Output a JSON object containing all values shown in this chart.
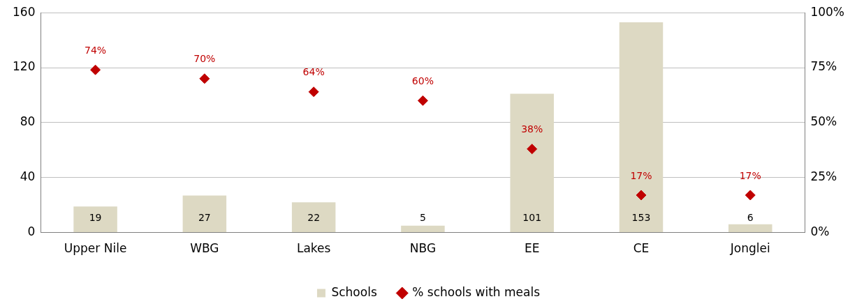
{
  "chart_data": {
    "type": "bar",
    "categories": [
      "Upper Nile",
      "WBG",
      "Lakes",
      "NBG",
      "EE",
      "CE",
      "Jonglei"
    ],
    "series": [
      {
        "name": "Schools",
        "color": "#ddd9c3",
        "values": [
          19,
          27,
          22,
          5,
          101,
          153,
          6
        ],
        "value_labels": [
          "19",
          "27",
          "22",
          "5",
          "101",
          "153",
          "6"
        ]
      },
      {
        "name": "% schools with meals",
        "type": "scatter",
        "axis": "y2",
        "color": "#c00000",
        "values": [
          74,
          70,
          64,
          60,
          38,
          17,
          17
        ],
        "value_labels": [
          "74%",
          "70%",
          "64%",
          "60%",
          "38%",
          "17%",
          "17%"
        ]
      }
    ],
    "ylim": [
      0,
      160
    ],
    "yticks": [
      0,
      40,
      80,
      120,
      160
    ],
    "y2lim": [
      0,
      100
    ],
    "y2ticks": [
      {
        "value": 0,
        "label": "0%"
      },
      {
        "value": 25,
        "label": "25%"
      },
      {
        "value": 50,
        "label": "50%"
      },
      {
        "value": 75,
        "label": "75%"
      },
      {
        "value": 100,
        "label": "100%"
      }
    ],
    "grid": "y",
    "legend": "bottom",
    "marker": "diamond"
  }
}
